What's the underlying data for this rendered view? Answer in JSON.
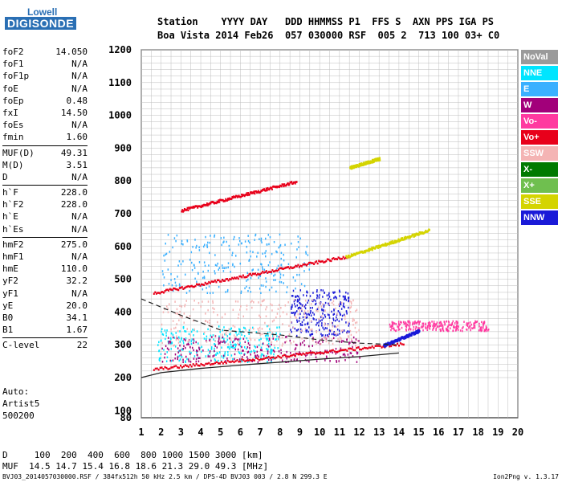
{
  "logo": {
    "line1": "Lowell",
    "line2": "DIGISONDE"
  },
  "header": {
    "labels": [
      "Station",
      "YYYY",
      "DAY",
      "DDD",
      "HHMMSS",
      "P1",
      "FFS",
      "S",
      "AXN",
      "PPS",
      "IGA",
      "PS"
    ],
    "row1": "Station    YYYY DAY   DDD HHMMSS P1  FFS S  AXN PPS IGA PS",
    "row2": "Boa Vista 2014 Feb26  057 030000 RSF  005 2  713 100 03+ C0"
  },
  "params": [
    {
      "k": "foF2",
      "v": "14.050"
    },
    {
      "k": "foF1",
      "v": "N/A"
    },
    {
      "k": "foF1p",
      "v": "N/A"
    },
    {
      "k": "foE",
      "v": "N/A"
    },
    {
      "k": "foEp",
      "v": "0.48"
    },
    {
      "k": "fxI",
      "v": "14.50"
    },
    {
      "k": "foEs",
      "v": "N/A"
    },
    {
      "k": "fmin",
      "v": "1.60"
    },
    {
      "k": "MUF(D)",
      "v": "49.31"
    },
    {
      "k": "M(D)",
      "v": "3.51"
    },
    {
      "k": "D",
      "v": "N/A"
    },
    {
      "k": "h`F",
      "v": "228.0"
    },
    {
      "k": "h`F2",
      "v": "228.0"
    },
    {
      "k": "h`E",
      "v": "N/A"
    },
    {
      "k": "h`Es",
      "v": "N/A"
    },
    {
      "k": "hmF2",
      "v": "275.0"
    },
    {
      "k": "hmF1",
      "v": "N/A"
    },
    {
      "k": "hmE",
      "v": "110.0"
    },
    {
      "k": "yF2",
      "v": "32.2"
    },
    {
      "k": "yF1",
      "v": "N/A"
    },
    {
      "k": "yE",
      "v": "20.0"
    },
    {
      "k": "B0",
      "v": "34.1"
    },
    {
      "k": "B1",
      "v": "1.67"
    },
    {
      "k": "C-level",
      "v": "22"
    }
  ],
  "auto": {
    "l1": "Auto:",
    "l2": "Artist5",
    "l3": "500200"
  },
  "legend": [
    {
      "label": "NoVal",
      "color": "#9a9a9a"
    },
    {
      "label": "NNE",
      "color": "#00e5ff"
    },
    {
      "label": "E",
      "color": "#3ab0ff"
    },
    {
      "label": "W",
      "color": "#a2007a"
    },
    {
      "label": "Vo-",
      "color": "#ff3aa0"
    },
    {
      "label": "Vo+",
      "color": "#e8001a"
    },
    {
      "label": "SSW",
      "color": "#f4b4b4"
    },
    {
      "label": "X-",
      "color": "#007a00"
    },
    {
      "label": "X+",
      "color": "#6fbf4f"
    },
    {
      "label": "SSE",
      "color": "#d4d400"
    },
    {
      "label": "NNW",
      "color": "#1a1ad8"
    }
  ],
  "bottom": {
    "row1": "D     100  200  400  600  800 1000 1500 3000 [km]",
    "row2": "MUF  14.5 14.7 15.4 16.8 18.6 21.3 29.0 49.3 [MHz]"
  },
  "footer": {
    "left": "BVJ03_2014057030000.RSF / 384fx512h 50 kHz 2.5 km / DPS-4D BVJ03 003 / 2.8 N 299.3 E",
    "right": "Ion2Png v. 1.3.17"
  },
  "chart_data": {
    "type": "scatter",
    "xlim": [
      1,
      20
    ],
    "ylim": [
      80,
      1200
    ],
    "xticks": [
      1,
      2,
      3,
      4,
      5,
      6,
      7,
      8,
      9,
      10,
      11,
      12,
      13,
      14,
      15,
      16,
      17,
      18,
      19,
      20
    ],
    "yticks": [
      80,
      100,
      200,
      300,
      400,
      500,
      600,
      700,
      800,
      900,
      1000,
      1100,
      1200
    ],
    "grid": true,
    "legend_position": "right",
    "traces": [
      {
        "name": "Vo+",
        "color": "#e8001a",
        "x": [
          1.6,
          14.2
        ],
        "y": [
          228,
          305
        ]
      },
      {
        "name": "Vo+",
        "color": "#e8001a",
        "x": [
          1.6,
          11.4
        ],
        "y": [
          460,
          572
        ]
      },
      {
        "name": "Vo+",
        "color": "#e8001a",
        "x": [
          3.0,
          8.8
        ],
        "y": [
          712,
          800
        ]
      },
      {
        "name": "SSE",
        "color": "#d4d400",
        "x": [
          11.3,
          15.5
        ],
        "y": [
          570,
          652
        ]
      },
      {
        "name": "SSE",
        "color": "#d4d400",
        "x": [
          11.5,
          13.0
        ],
        "y": [
          843,
          870
        ]
      },
      {
        "name": "NNW",
        "color": "#1a1ad8",
        "x": [
          13.2,
          15.0
        ],
        "y": [
          300,
          345
        ]
      }
    ],
    "clusters": [
      {
        "name": "E",
        "color": "#3ab0ff",
        "x": [
          2.0,
          9.5
        ],
        "y": [
          460,
          640
        ]
      },
      {
        "name": "NNE",
        "color": "#00e5ff",
        "x": [
          1.8,
          8.0
        ],
        "y": [
          250,
          360
        ]
      },
      {
        "name": "W",
        "color": "#a2007a",
        "x": [
          2.0,
          12.0
        ],
        "y": [
          250,
          330
        ]
      },
      {
        "name": "NNW",
        "color": "#1a1ad8",
        "x": [
          8.5,
          11.5
        ],
        "y": [
          330,
          470
        ]
      },
      {
        "name": "SSW",
        "color": "#f4b4b4",
        "x": [
          2.0,
          12.0
        ],
        "y": [
          300,
          440
        ]
      },
      {
        "name": "Vo-",
        "color": "#ff3aa0",
        "x": [
          13.5,
          18.5
        ],
        "y": [
          345,
          375
        ]
      }
    ],
    "profile": {
      "x": [
        1.0,
        2.0,
        4.0,
        6.0,
        8.0,
        10.0,
        12.0,
        14.0
      ],
      "y": [
        200,
        215,
        228,
        238,
        247,
        256,
        264,
        275
      ]
    },
    "mufd": {
      "x": [
        1.0,
        3.0,
        5.0,
        8.0,
        10.0,
        12.0,
        14.0
      ],
      "y": [
        440,
        390,
        345,
        330,
        315,
        305,
        300
      ]
    }
  }
}
